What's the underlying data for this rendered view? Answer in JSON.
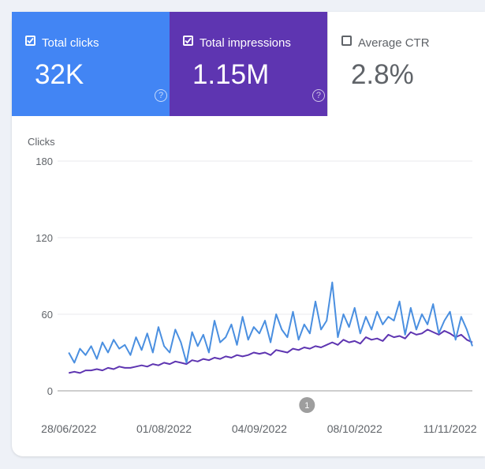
{
  "metrics": [
    {
      "label": "Total clicks",
      "value": "32K",
      "checked": true,
      "color": "#4285f4"
    },
    {
      "label": "Total impressions",
      "value": "1.15M",
      "checked": true,
      "color": "#5e35b1"
    },
    {
      "label": "Average CTR",
      "value": "2.8%",
      "checked": false,
      "color": "#ffffff"
    }
  ],
  "chart_data": {
    "type": "line",
    "y_label": "Clicks",
    "x": [
      "2022-06-28",
      "2022-06-30",
      "2022-07-02",
      "2022-07-04",
      "2022-07-06",
      "2022-07-08",
      "2022-07-10",
      "2022-07-12",
      "2022-07-14",
      "2022-07-16",
      "2022-07-18",
      "2022-07-20",
      "2022-07-22",
      "2022-07-24",
      "2022-07-26",
      "2022-07-28",
      "2022-07-30",
      "2022-08-01",
      "2022-08-03",
      "2022-08-05",
      "2022-08-07",
      "2022-08-09",
      "2022-08-11",
      "2022-08-13",
      "2022-08-15",
      "2022-08-17",
      "2022-08-19",
      "2022-08-21",
      "2022-08-23",
      "2022-08-25",
      "2022-08-27",
      "2022-08-29",
      "2022-08-31",
      "2022-09-02",
      "2022-09-04",
      "2022-09-06",
      "2022-09-08",
      "2022-09-10",
      "2022-09-12",
      "2022-09-14",
      "2022-09-16",
      "2022-09-18",
      "2022-09-20",
      "2022-09-22",
      "2022-09-24",
      "2022-09-26",
      "2022-09-28",
      "2022-09-30",
      "2022-10-02",
      "2022-10-04",
      "2022-10-06",
      "2022-10-08",
      "2022-10-10",
      "2022-10-12",
      "2022-10-14",
      "2022-10-16",
      "2022-10-18",
      "2022-10-20",
      "2022-10-22",
      "2022-10-24",
      "2022-10-26",
      "2022-10-28",
      "2022-10-30",
      "2022-11-01",
      "2022-11-03",
      "2022-11-05",
      "2022-11-07",
      "2022-11-09",
      "2022-11-11",
      "2022-11-13",
      "2022-11-15",
      "2022-11-17",
      "2022-11-19"
    ],
    "series": [
      {
        "name": "Total clicks",
        "color": "#4a8fe0",
        "values": [
          30,
          22,
          33,
          28,
          35,
          25,
          38,
          30,
          40,
          33,
          36,
          28,
          42,
          32,
          45,
          30,
          50,
          35,
          30,
          48,
          38,
          22,
          46,
          35,
          44,
          30,
          55,
          38,
          42,
          52,
          36,
          58,
          40,
          50,
          45,
          55,
          38,
          60,
          48,
          42,
          62,
          40,
          52,
          45,
          70,
          48,
          55,
          85,
          42,
          60,
          50,
          65,
          45,
          58,
          48,
          62,
          52,
          58,
          55,
          70,
          44,
          65,
          48,
          60,
          52,
          68,
          45,
          55,
          62,
          40,
          58,
          48,
          35
        ]
      },
      {
        "name": "Total impressions",
        "color": "#5e35b1",
        "values": [
          14,
          15,
          14,
          16,
          16,
          17,
          16,
          18,
          17,
          19,
          18,
          18,
          19,
          20,
          19,
          21,
          20,
          22,
          21,
          23,
          22,
          21,
          24,
          23,
          25,
          24,
          26,
          25,
          27,
          26,
          28,
          27,
          28,
          30,
          29,
          30,
          28,
          32,
          31,
          30,
          33,
          32,
          34,
          33,
          35,
          34,
          36,
          38,
          36,
          40,
          38,
          39,
          37,
          42,
          40,
          41,
          39,
          44,
          42,
          43,
          41,
          46,
          44,
          45,
          48,
          46,
          44,
          47,
          45,
          42,
          44,
          40,
          38
        ]
      }
    ],
    "xlim": [
      "2022-06-24",
      "2022-11-19"
    ],
    "xticks": [
      {
        "value": "2022-06-28",
        "label": "28/06/2022"
      },
      {
        "value": "2022-08-01",
        "label": "01/08/2022"
      },
      {
        "value": "2022-09-04",
        "label": "04/09/2022"
      },
      {
        "value": "2022-10-08",
        "label": "08/10/2022"
      },
      {
        "value": "2022-11-11",
        "label": "11/11/2022"
      }
    ],
    "ylim": [
      0,
      180
    ],
    "yticks": [
      0,
      60,
      120,
      180
    ],
    "grid": true,
    "annotations": [
      {
        "x": "2022-09-21",
        "label": "1"
      }
    ]
  }
}
